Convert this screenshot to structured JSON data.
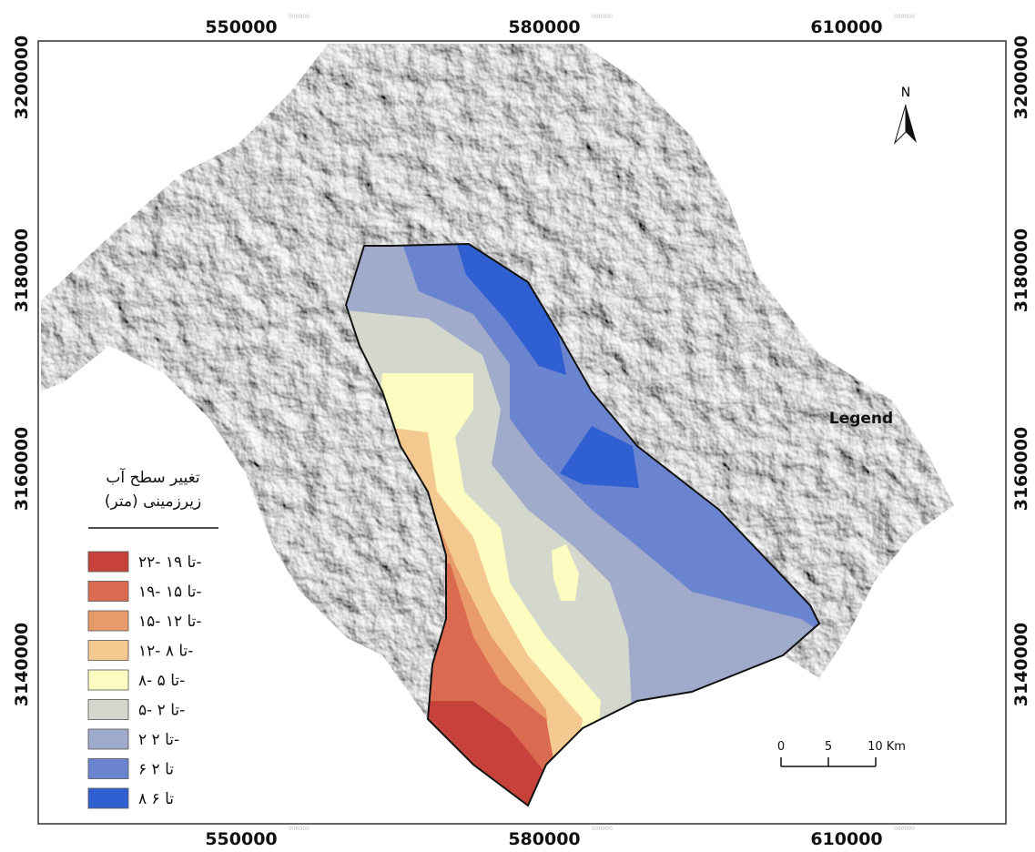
{
  "map": {
    "x_labels": [
      "550000",
      "580000",
      "610000"
    ],
    "y_labels": [
      "3200000",
      "3180000",
      "3160000",
      "3140000"
    ],
    "faint_label": "000000",
    "north": "N",
    "legend_word": "Legend",
    "scale_bar": [
      "0",
      "5",
      "10 Km"
    ],
    "legend": {
      "title": [
        "تغییر سطح آب",
        "زیرزمینی (متر)"
      ],
      "items": [
        {
          "label": "۲۲- تا ۱۹-",
          "color": "#c8423c"
        },
        {
          "label": "۱۹- تا ۱۵-",
          "color": "#db6b50"
        },
        {
          "label": "۱۵- تا ۱۲-",
          "color": "#e99a6b"
        },
        {
          "label": "۱۲- تا ۸-",
          "color": "#f4c98f"
        },
        {
          "label": "۸- تا ۵-",
          "color": "#fdfcc0"
        },
        {
          "label": "۵- تا ۲-",
          "color": "#d4d8cc"
        },
        {
          "label": "۲ تا ۲-",
          "color": "#a0aacb"
        },
        {
          "label": "۶ تا ۲",
          "color": "#6b84d0"
        },
        {
          "label": "۸ تا ۶",
          "color": "#2f5fd0"
        }
      ]
    }
  }
}
